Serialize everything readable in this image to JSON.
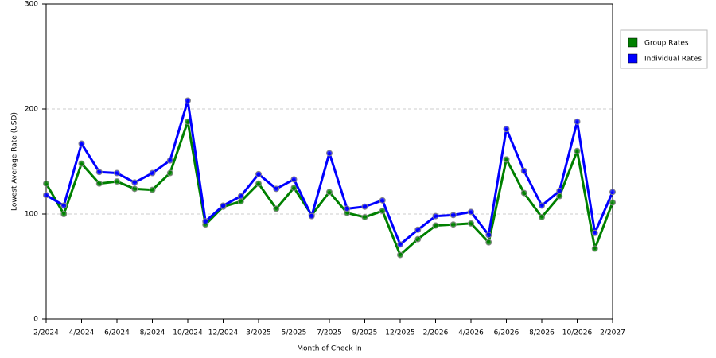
{
  "chart_data": {
    "type": "line",
    "x_label": "Month of Check In",
    "y_label": "Lowest Average Rate (USD)",
    "categories": [
      "2/2024",
      null,
      "4/2024",
      null,
      "6/2024",
      null,
      "8/2024",
      null,
      "10/2024",
      null,
      "12/2024",
      null,
      "3/2025",
      null,
      "5/2025",
      null,
      "7/2025",
      null,
      "9/2025",
      null,
      "12/2025",
      null,
      "2/2026",
      null,
      "4/2026",
      null,
      "6/2026",
      null,
      "8/2026",
      null,
      "10/2026",
      null,
      "2/2027"
    ],
    "series": [
      {
        "name": "Group Rates",
        "color": "#008000",
        "values": [
          129,
          100,
          148,
          129,
          131,
          124,
          123,
          139,
          188,
          90,
          107,
          112,
          129,
          105,
          125,
          99,
          121,
          101,
          97,
          103,
          61,
          76,
          89,
          90,
          91,
          73,
          152,
          120,
          97,
          117,
          160,
          67,
          111
        ]
      },
      {
        "name": "Individual Rates",
        "color": "#0000ff",
        "values": [
          118,
          108,
          167,
          140,
          139,
          130,
          139,
          151,
          208,
          93,
          108,
          117,
          138,
          124,
          133,
          98,
          158,
          105,
          107,
          113,
          71,
          85,
          98,
          99,
          102,
          80,
          181,
          141,
          108,
          122,
          188,
          82,
          121
        ]
      }
    ],
    "ylim": [
      0,
      300
    ],
    "yticks": [
      0,
      100,
      200,
      300
    ],
    "grid": true,
    "legend": "top-right"
  }
}
